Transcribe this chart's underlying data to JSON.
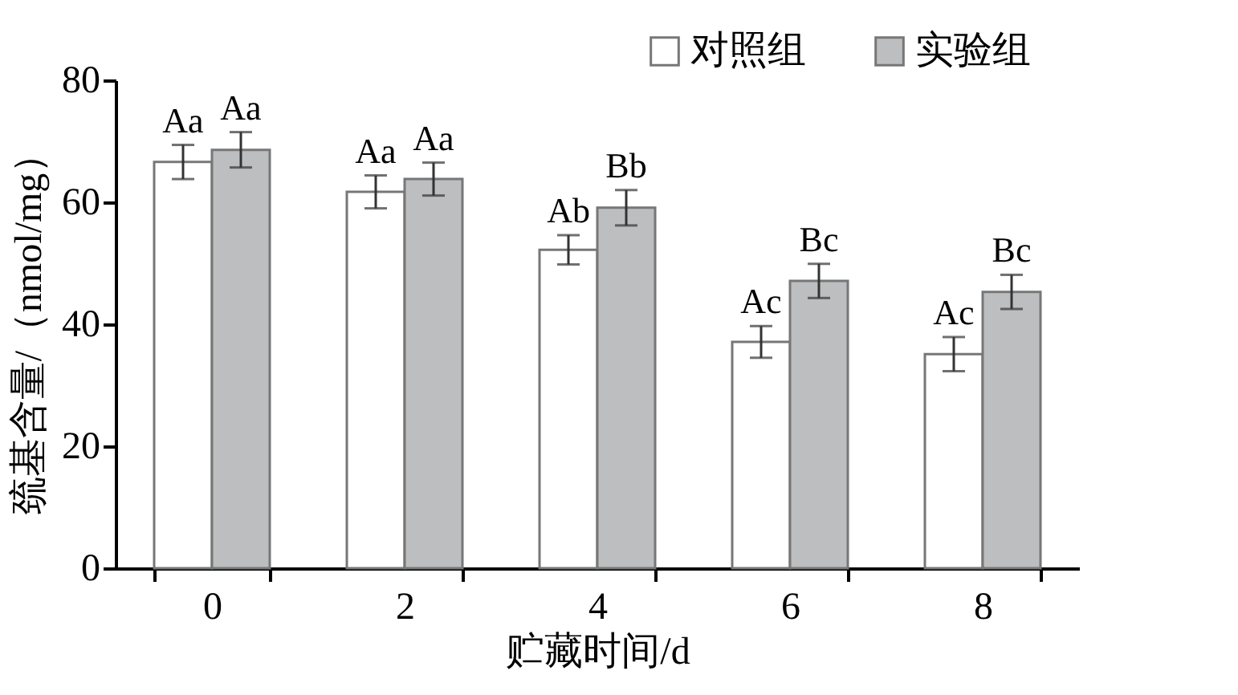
{
  "chart_data": {
    "type": "bar",
    "xlabel": "贮藏时间/d",
    "ylabel": "巯基含量/（nmol/mg）",
    "categories": [
      "0",
      "2",
      "4",
      "6",
      "8"
    ],
    "series": [
      {
        "name": "对照组",
        "color": "#ffffff",
        "values": [
          66.6,
          61.7,
          52.2,
          37.1,
          35.1
        ],
        "errors": [
          2.8,
          2.7,
          2.4,
          2.6,
          2.8
        ],
        "value_labels": [
          "Aa",
          "Aa",
          "Ab",
          "Ac",
          "Ac"
        ]
      },
      {
        "name": "实验组",
        "color": "#bdbec0",
        "values": [
          68.6,
          63.8,
          59.1,
          47.1,
          45.3
        ],
        "errors": [
          2.9,
          2.7,
          2.9,
          2.8,
          2.8
        ],
        "value_labels": [
          "Aa",
          "Aa",
          "Bb",
          "Bc",
          "Bc"
        ]
      }
    ],
    "ylim": [
      0,
      80
    ],
    "yticks": [
      0,
      20,
      40,
      60,
      80
    ],
    "grid": false,
    "legend": "top right"
  }
}
